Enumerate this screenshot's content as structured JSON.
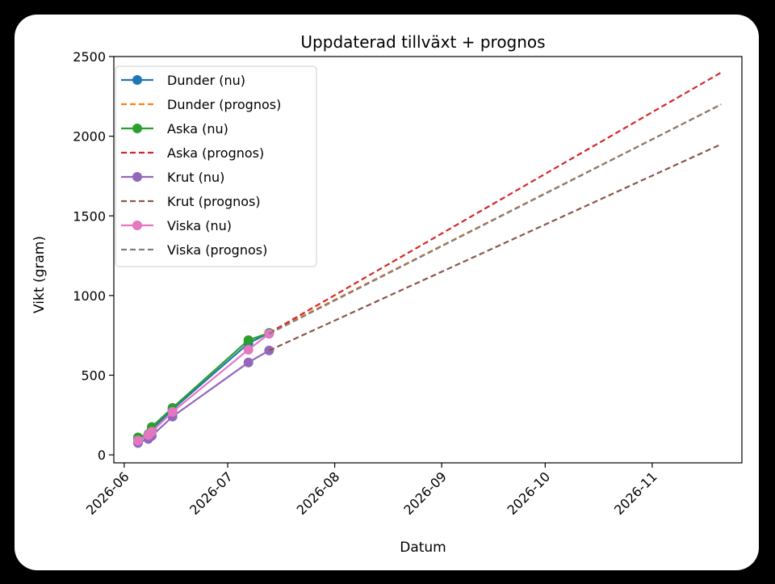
{
  "chart_data": {
    "type": "line",
    "title": "Uppdaterad tillväxt + prognos",
    "xlabel": "Datum",
    "ylabel": "Vikt (gram)",
    "xlim": [
      "2026-05-29",
      "2026-11-27"
    ],
    "ylim": [
      -50,
      2500
    ],
    "xticks": [
      "2026-06-01",
      "2026-07-01",
      "2026-08-01",
      "2026-09-01",
      "2026-10-01",
      "2026-11-01"
    ],
    "xtick_labels": [
      "2026-06",
      "2026-07",
      "2026-08",
      "2026-09",
      "2026-10",
      "2026-11"
    ],
    "yticks": [
      0,
      500,
      1000,
      1500,
      2000,
      2500
    ],
    "legend_position": "upper-left",
    "grid": false,
    "series": [
      {
        "name": "Dunder (nu)",
        "style": "solid-marker",
        "color": "#1f77b4",
        "x": [
          "2026-06-05",
          "2026-06-08",
          "2026-06-09",
          "2026-06-15",
          "2026-07-07",
          "2026-07-13"
        ],
        "y": [
          95,
          115,
          160,
          285,
          700,
          765
        ]
      },
      {
        "name": "Dunder (prognos)",
        "style": "dashed",
        "color": "#ff7f0e",
        "x": [
          "2026-07-13",
          "2026-11-21"
        ],
        "y": [
          765,
          2200
        ]
      },
      {
        "name": "Aska (nu)",
        "style": "solid-marker",
        "color": "#2ca02c",
        "x": [
          "2026-06-05",
          "2026-06-08",
          "2026-06-09",
          "2026-06-15",
          "2026-07-07",
          "2026-07-13"
        ],
        "y": [
          110,
          130,
          175,
          295,
          720,
          765
        ]
      },
      {
        "name": "Aska (prognos)",
        "style": "dashed",
        "color": "#d62728",
        "x": [
          "2026-07-13",
          "2026-11-21"
        ],
        "y": [
          765,
          2400
        ]
      },
      {
        "name": "Krut (nu)",
        "style": "solid-marker",
        "color": "#9467bd",
        "x": [
          "2026-06-05",
          "2026-06-08",
          "2026-06-09",
          "2026-06-15",
          "2026-07-07",
          "2026-07-13"
        ],
        "y": [
          75,
          100,
          120,
          240,
          580,
          655
        ]
      },
      {
        "name": "Krut (prognos)",
        "style": "dashed",
        "color": "#8c564b",
        "x": [
          "2026-07-13",
          "2026-11-21"
        ],
        "y": [
          655,
          1950
        ]
      },
      {
        "name": "Viska (nu)",
        "style": "solid-marker",
        "color": "#e377c2",
        "x": [
          "2026-06-05",
          "2026-06-08",
          "2026-06-09",
          "2026-06-15",
          "2026-07-07",
          "2026-07-13"
        ],
        "y": [
          90,
          125,
          145,
          270,
          660,
          760
        ]
      },
      {
        "name": "Viska (prognos)",
        "style": "dashed",
        "color": "#7f7f7f",
        "x": [
          "2026-07-13",
          "2026-11-21"
        ],
        "y": [
          760,
          2200
        ]
      }
    ]
  }
}
